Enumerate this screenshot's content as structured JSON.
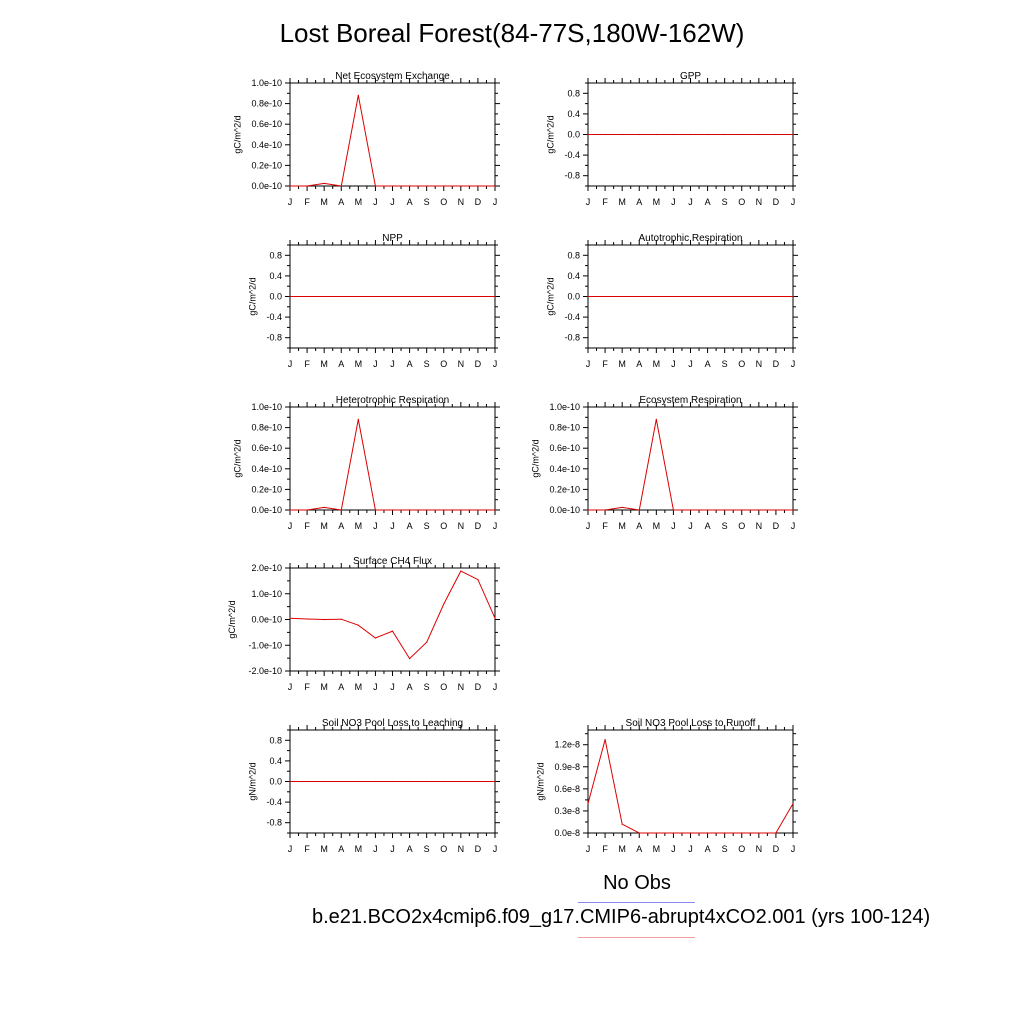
{
  "title": "Lost Boreal Forest(84-77S,180W-162W)",
  "legend": {
    "obs_label": "No Obs",
    "case_label": "b.e21.BCO2x4cmip6.f09_g17.CMIP6-abrupt4xCO2.001 (yrs 100-124)",
    "obs_color": "#8888ee",
    "case_color": "#f0a0a0"
  },
  "series_color": "#dd0000",
  "chart_data": [
    {
      "type": "line",
      "title": "Net Ecosystem Exchange",
      "ylabel": "gC/m^2/d",
      "categories": [
        "J",
        "F",
        "M",
        "A",
        "M",
        "J",
        "J",
        "A",
        "S",
        "O",
        "N",
        "D",
        "J"
      ],
      "yticks": [
        0,
        2e-11,
        4e-11,
        6e-11,
        8e-11,
        1e-10
      ],
      "ytick_labels": [
        "0.0e-10",
        "0.2e-10",
        "0.4e-10",
        "0.6e-10",
        "0.8e-10",
        "1.0e-10"
      ],
      "ylim": [
        0,
        1e-10
      ],
      "values": [
        0,
        0,
        2.5e-12,
        0,
        8.8e-11,
        0,
        0,
        0,
        0,
        0,
        0,
        0,
        0
      ]
    },
    {
      "type": "line",
      "title": "GPP",
      "ylabel": "gC/m^2/d",
      "categories": [
        "J",
        "F",
        "M",
        "A",
        "M",
        "J",
        "J",
        "A",
        "S",
        "O",
        "N",
        "D",
        "J"
      ],
      "yticks": [
        -0.8,
        -0.4,
        0,
        0.4,
        0.8
      ],
      "ytick_labels": [
        "-0.8",
        "-0.4",
        "0.0",
        "0.4",
        "0.8"
      ],
      "ylim": [
        -1,
        1
      ],
      "values": [
        0,
        0,
        0,
        0,
        0,
        0,
        0,
        0,
        0,
        0,
        0,
        0,
        0
      ]
    },
    {
      "type": "line",
      "title": "NPP",
      "ylabel": "gC/m^2/d",
      "categories": [
        "J",
        "F",
        "M",
        "A",
        "M",
        "J",
        "J",
        "A",
        "S",
        "O",
        "N",
        "D",
        "J"
      ],
      "yticks": [
        -0.8,
        -0.4,
        0,
        0.4,
        0.8
      ],
      "ytick_labels": [
        "-0.8",
        "-0.4",
        "0.0",
        "0.4",
        "0.8"
      ],
      "ylim": [
        -1,
        1
      ],
      "values": [
        0,
        0,
        0,
        0,
        0,
        0,
        0,
        0,
        0,
        0,
        0,
        0,
        0
      ]
    },
    {
      "type": "line",
      "title": "Autotrophic Respiration",
      "ylabel": "gC/m^2/d",
      "categories": [
        "J",
        "F",
        "M",
        "A",
        "M",
        "J",
        "J",
        "A",
        "S",
        "O",
        "N",
        "D",
        "J"
      ],
      "yticks": [
        -0.8,
        -0.4,
        0,
        0.4,
        0.8
      ],
      "ytick_labels": [
        "-0.8",
        "-0.4",
        "0.0",
        "0.4",
        "0.8"
      ],
      "ylim": [
        -1,
        1
      ],
      "values": [
        0,
        0,
        0,
        0,
        0,
        0,
        0,
        0,
        0,
        0,
        0,
        0,
        0
      ]
    },
    {
      "type": "line",
      "title": "Heterotrophic Respiration",
      "ylabel": "gC/m^2/d",
      "categories": [
        "J",
        "F",
        "M",
        "A",
        "M",
        "J",
        "J",
        "A",
        "S",
        "O",
        "N",
        "D",
        "J"
      ],
      "yticks": [
        0,
        2e-11,
        4e-11,
        6e-11,
        8e-11,
        1e-10
      ],
      "ytick_labels": [
        "0.0e-10",
        "0.2e-10",
        "0.4e-10",
        "0.6e-10",
        "0.8e-10",
        "1.0e-10"
      ],
      "ylim": [
        0,
        1e-10
      ],
      "values": [
        0,
        0,
        2.5e-12,
        0,
        8.8e-11,
        0,
        0,
        0,
        0,
        0,
        0,
        0,
        0
      ]
    },
    {
      "type": "line",
      "title": "Ecosystem Respiration",
      "ylabel": "gC/m^2/d",
      "categories": [
        "J",
        "F",
        "M",
        "A",
        "M",
        "J",
        "J",
        "A",
        "S",
        "O",
        "N",
        "D",
        "J"
      ],
      "yticks": [
        0,
        2e-11,
        4e-11,
        6e-11,
        8e-11,
        1e-10
      ],
      "ytick_labels": [
        "0.0e-10",
        "0.2e-10",
        "0.4e-10",
        "0.6e-10",
        "0.8e-10",
        "1.0e-10"
      ],
      "ylim": [
        0,
        1e-10
      ],
      "values": [
        0,
        0,
        2.5e-12,
        0,
        8.8e-11,
        0,
        0,
        0,
        0,
        0,
        0,
        0,
        0
      ]
    },
    {
      "type": "line",
      "title": "Surface CH4 Flux",
      "ylabel": "gC/m^2/d",
      "categories": [
        "J",
        "F",
        "M",
        "A",
        "M",
        "J",
        "J",
        "A",
        "S",
        "O",
        "N",
        "D",
        "J"
      ],
      "yticks": [
        -2e-10,
        -1e-10,
        0,
        1e-10,
        2e-10
      ],
      "ytick_labels": [
        "-2.0e-10",
        "-1.0e-10",
        "0.0e-10",
        "1.0e-10",
        "2.0e-10"
      ],
      "ylim": [
        -2e-10,
        2e-10
      ],
      "values": [
        5e-12,
        2e-12,
        0,
        1e-12,
        -2.2e-11,
        -7.2e-11,
        -4.5e-11,
        -1.52e-10,
        -8.8e-11,
        6e-11,
        1.88e-10,
        1.55e-10,
        5e-12
      ]
    },
    {
      "type": "line",
      "title": "Soil NO3 Pool Loss to Leaching",
      "ylabel": "gN/m^2/d",
      "categories": [
        "J",
        "F",
        "M",
        "A",
        "M",
        "J",
        "J",
        "A",
        "S",
        "O",
        "N",
        "D",
        "J"
      ],
      "yticks": [
        -0.8,
        -0.4,
        0,
        0.4,
        0.8
      ],
      "ytick_labels": [
        "-0.8",
        "-0.4",
        "0.0",
        "0.4",
        "0.8"
      ],
      "ylim": [
        -1,
        1
      ],
      "values": [
        0,
        0,
        0,
        0,
        0,
        0,
        0,
        0,
        0,
        0,
        0,
        0,
        0
      ]
    },
    {
      "type": "line",
      "title": "Soil NO3 Pool Loss to Runoff",
      "ylabel": "gN/m^2/d",
      "categories": [
        "J",
        "F",
        "M",
        "A",
        "M",
        "J",
        "J",
        "A",
        "S",
        "O",
        "N",
        "D",
        "J"
      ],
      "yticks": [
        0,
        3e-09,
        6e-09,
        9e-09,
        1.2e-08
      ],
      "ytick_labels": [
        "0.0e-8",
        "0.3e-8",
        "0.6e-8",
        "0.9e-8",
        "1.2e-8"
      ],
      "ylim": [
        0,
        1.4e-08
      ],
      "values": [
        4e-09,
        1.27e-08,
        1.2e-09,
        0,
        0,
        0,
        0,
        0,
        0,
        0,
        0,
        0,
        4e-09
      ]
    }
  ]
}
